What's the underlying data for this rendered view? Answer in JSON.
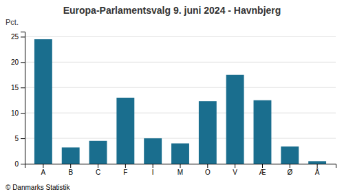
{
  "chart_data": {
    "type": "bar",
    "title": "Europa-Parlamentsvalg 9. juni 2024 - Havnbjerg",
    "categories": [
      "A",
      "B",
      "C",
      "F",
      "I",
      "M",
      "O",
      "V",
      "Æ",
      "Ø",
      "Å"
    ],
    "values": [
      24.5,
      3.2,
      4.5,
      13.0,
      5.0,
      4.0,
      12.3,
      17.5,
      12.5,
      3.4,
      0.5
    ],
    "color": "#1a6e8e",
    "ylim": [
      0,
      26
    ],
    "yticks": [
      0,
      5,
      10,
      15,
      20,
      25
    ],
    "ylabel": "Pct.",
    "footer": "© Danmarks Statistik",
    "grid": true
  }
}
